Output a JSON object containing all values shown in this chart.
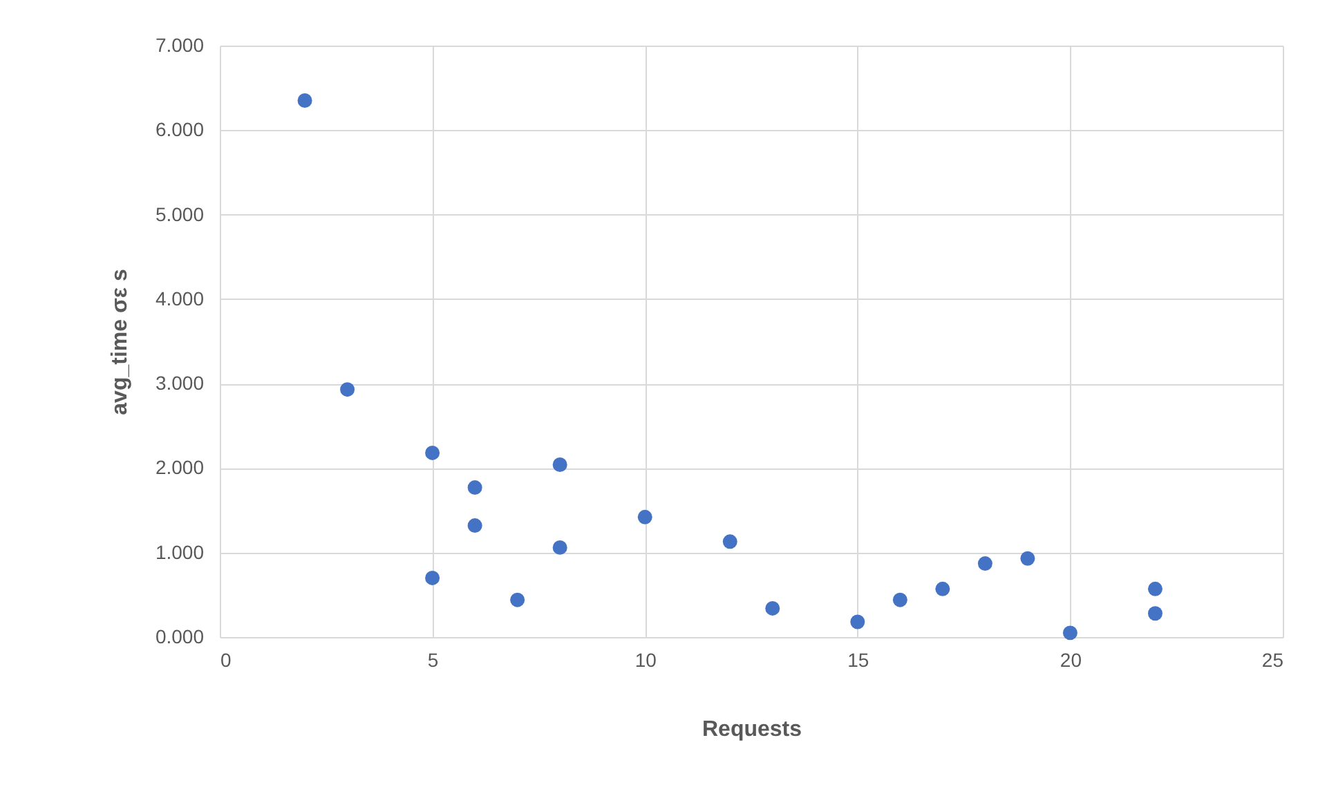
{
  "chart_data": {
    "type": "scatter",
    "xlabel": "Requests",
    "ylabel": "avg_time σε s",
    "x": [
      2,
      3,
      5,
      5,
      6,
      6,
      7,
      8,
      8,
      10,
      12,
      13,
      15,
      16,
      17,
      18,
      19,
      20,
      22,
      22
    ],
    "series": [
      {
        "color": "#4472c4",
        "values": [
          6.35,
          2.93,
          2.18,
          0.7,
          1.77,
          1.32,
          0.44,
          2.04,
          1.06,
          1.42,
          1.13,
          0.34,
          0.18,
          0.44,
          0.57,
          0.87,
          0.93,
          0.05,
          0.57,
          0.28
        ]
      }
    ],
    "xlim": [
      0,
      25
    ],
    "xticks": [
      0,
      5,
      10,
      15,
      20,
      25
    ],
    "ylim": [
      0,
      7
    ],
    "yticks": [
      {
        "value": 0,
        "label": "0.000"
      },
      {
        "value": 1,
        "label": "1.000"
      },
      {
        "value": 2,
        "label": "2.000"
      },
      {
        "value": 3,
        "label": "3.000"
      },
      {
        "value": 4,
        "label": "4.000"
      },
      {
        "value": 5,
        "label": "5.000"
      },
      {
        "value": 6,
        "label": "6.000"
      },
      {
        "value": 7,
        "label": "7.000"
      }
    ],
    "grid": true,
    "marker": "circle"
  }
}
